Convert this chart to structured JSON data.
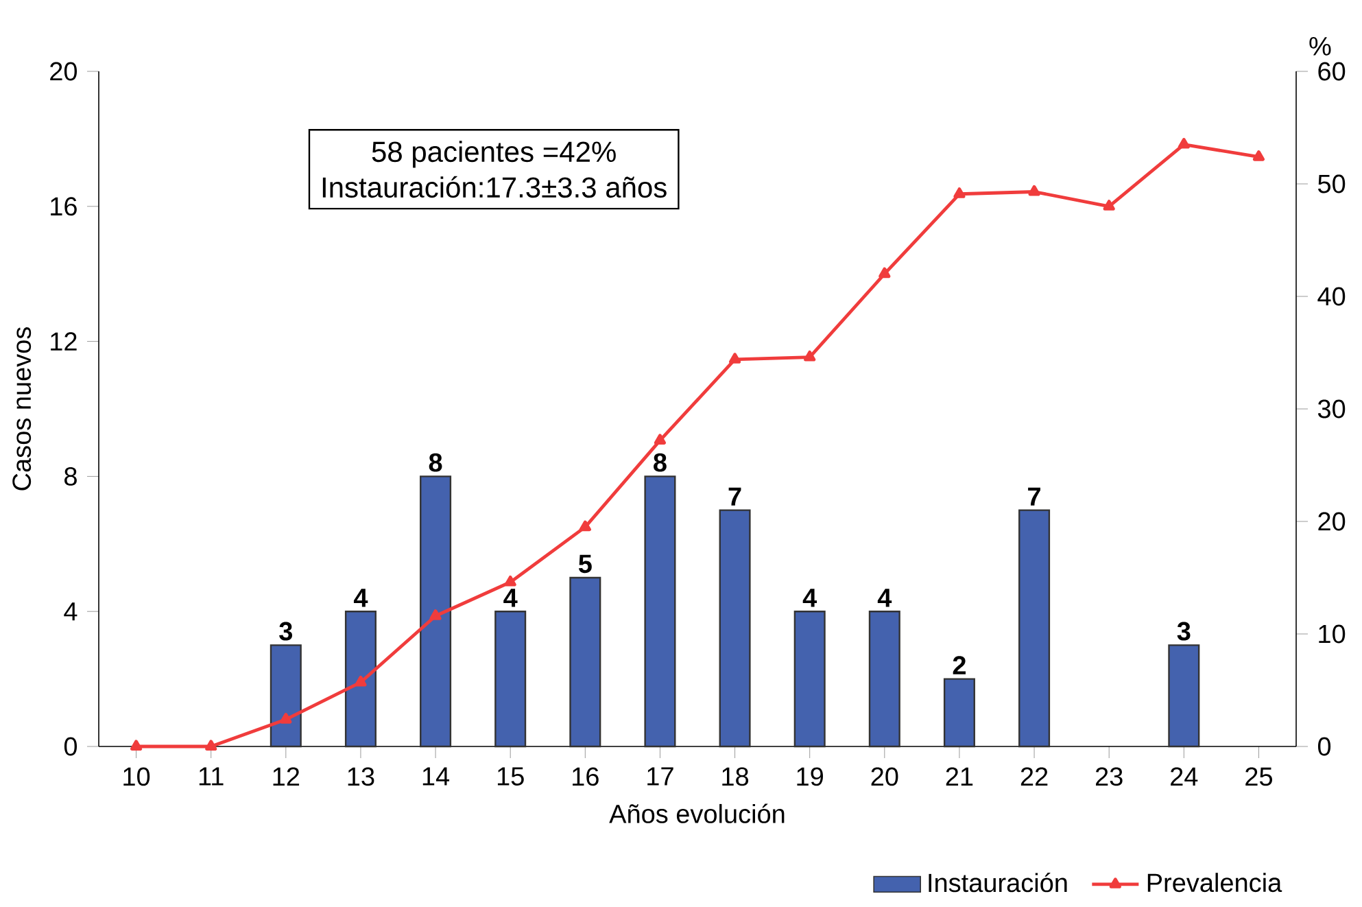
{
  "chart_data": {
    "type": "bar",
    "xlabel": "Años evolución",
    "ylabel": "Casos nuevos",
    "y2label": "%",
    "categories": [
      "10",
      "11",
      "12",
      "13",
      "14",
      "15",
      "16",
      "17",
      "18",
      "19",
      "20",
      "21",
      "22",
      "23",
      "24",
      "25"
    ],
    "series": [
      {
        "name": "Instauración",
        "color": "#4462ae",
        "values": [
          null,
          null,
          3,
          4,
          8,
          4,
          5,
          8,
          7,
          4,
          4,
          2,
          7,
          null,
          3,
          null
        ],
        "value_labels": [
          null,
          null,
          "3",
          "4",
          "8",
          "4",
          "5",
          "8",
          "7",
          "4",
          "4",
          "2",
          "7",
          null,
          "3",
          null
        ]
      },
      {
        "name": "Prevalencia",
        "type": "line",
        "axis": "y2",
        "color": "#f03c3c",
        "marker": "triangle",
        "values": [
          0,
          0,
          2.4,
          5.7,
          11.6,
          14.6,
          19.5,
          27.2,
          34.4,
          34.6,
          42.0,
          49.1,
          49.3,
          48.0,
          53.5,
          52.4
        ]
      }
    ],
    "ylim": [
      0,
      20
    ],
    "yticks": [
      0,
      4,
      8,
      12,
      16,
      20
    ],
    "y2lim": [
      0,
      60
    ],
    "y2ticks": [
      0,
      10,
      20,
      30,
      40,
      50,
      60
    ],
    "annotations": [
      "58 pacientes =42%",
      "Instauración:17.3±3.3 años"
    ],
    "legend": "bottom right"
  }
}
